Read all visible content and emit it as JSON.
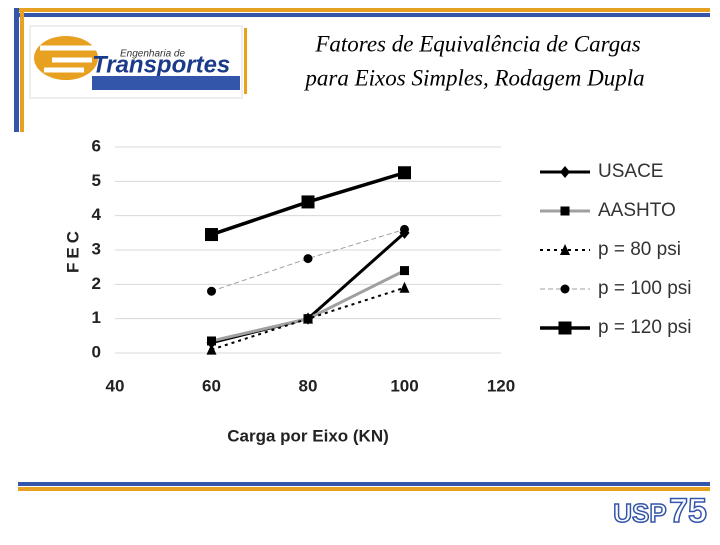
{
  "slide": {
    "title": [
      "Fatores de Equivalência de Cargas",
      "para Eixos Simples, Rodagem Dupla"
    ],
    "logo": {
      "line1": "Engenharia de",
      "line2": "Transportes"
    },
    "footer_logo": {
      "name": "USP",
      "number": "75"
    }
  },
  "chart_data": {
    "type": "line",
    "xlabel": "Carga por Eixo (KN)",
    "ylabel": "FEC",
    "x": [
      60,
      80,
      100
    ],
    "xlim": [
      40,
      120
    ],
    "xticks": [
      40,
      60,
      80,
      100,
      120
    ],
    "ylim": [
      0,
      6
    ],
    "yticks": [
      0,
      1,
      2,
      3,
      4,
      5,
      6
    ],
    "grid": true,
    "series": [
      {
        "name": "USACE",
        "color": "#000000",
        "values": [
          0.3,
          1.0,
          3.5
        ],
        "style": "solid",
        "marker": "diamond"
      },
      {
        "name": "AASHTO",
        "color": "#a0a0a0",
        "values": [
          0.35,
          1.0,
          2.4
        ],
        "style": "solid",
        "marker": "square"
      },
      {
        "name": "p = 80 psi",
        "color": "#000000",
        "values": [
          0.1,
          1.0,
          1.9
        ],
        "style": "dotted",
        "marker": "triangle"
      },
      {
        "name": "p = 100 psi",
        "color": "#a0a0a0",
        "values": [
          1.8,
          2.75,
          3.6
        ],
        "style": "dashed",
        "marker": "circle"
      },
      {
        "name": "p = 120 psi",
        "color": "#000000",
        "values": [
          3.45,
          4.4,
          5.25
        ],
        "style": "thick",
        "marker": "bigsquare"
      }
    ]
  }
}
